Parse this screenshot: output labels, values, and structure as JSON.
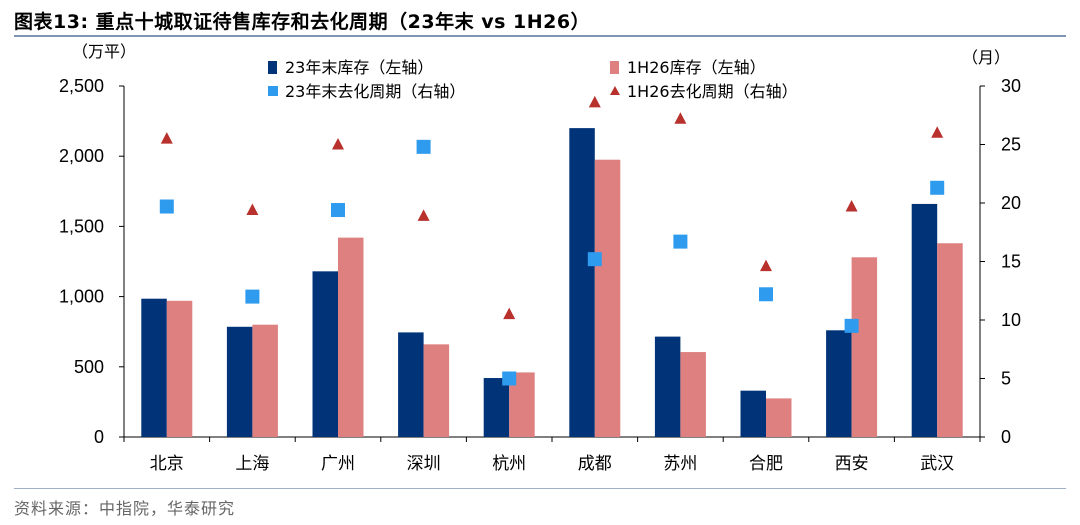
{
  "figure": {
    "title": "图表13:  重点十城取证待售库存和去化周期（23年末 vs 1H26）",
    "source": "资料来源：中指院，华泰研究"
  },
  "chart_data": {
    "type": "bar",
    "title": "重点十城取证待售库存和去化周期（23年末 vs 1H26）",
    "categories": [
      "北京",
      "上海",
      "广州",
      "深圳",
      "杭州",
      "成都",
      "苏州",
      "合肥",
      "西安",
      "武汉"
    ],
    "y_left": {
      "unit": "（万平）",
      "ylim": [
        0,
        2500
      ],
      "ticks": [
        "0",
        "500",
        "1,000",
        "1,500",
        "2,000",
        "2,500"
      ]
    },
    "y_right": {
      "unit": "（月）",
      "ylim": [
        0,
        30
      ],
      "ticks": [
        "0",
        "5",
        "10",
        "15",
        "20",
        "25",
        "30"
      ]
    },
    "series": [
      {
        "name": "23年末库存（左轴）",
        "kind": "bar",
        "axis": "left",
        "color": "#003378",
        "values": [
          985,
          785,
          1180,
          745,
          420,
          2200,
          715,
          330,
          760,
          1660
        ]
      },
      {
        "name": "1H26库存（左轴）",
        "kind": "bar",
        "axis": "left",
        "color": "#de8080",
        "values": [
          970,
          800,
          1420,
          660,
          460,
          1975,
          605,
          275,
          1280,
          1380
        ]
      },
      {
        "name": "23年末去化周期（右轴）",
        "kind": "scatter",
        "marker": "square",
        "axis": "right",
        "color": "#2e9bee",
        "values": [
          19.7,
          12.0,
          19.4,
          24.8,
          5.0,
          15.2,
          16.7,
          12.2,
          9.5,
          21.3
        ]
      },
      {
        "name": "1H26去化周期（右轴）",
        "kind": "scatter",
        "marker": "triangle",
        "axis": "right",
        "color": "#b8312c",
        "values": [
          25.5,
          19.4,
          25.0,
          18.9,
          10.5,
          28.6,
          27.2,
          14.6,
          19.7,
          26.0
        ]
      }
    ],
    "legend": "top-center",
    "grid": false
  }
}
